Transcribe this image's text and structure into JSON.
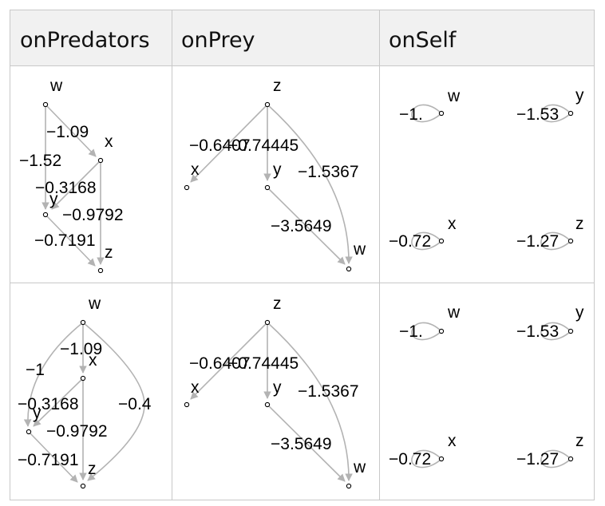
{
  "headers": [
    "onPredators",
    "onPrey",
    "onSelf"
  ],
  "rows": [
    {
      "onPredators": {
        "nodes": [
          "w",
          "x",
          "y",
          "z"
        ],
        "edge_labels": [
          "−1.09",
          "−1.52",
          "−0.3168",
          "−0.9792",
          "−0.7191"
        ]
      },
      "onPrey": {
        "nodes": [
          "z",
          "x",
          "y",
          "w"
        ],
        "edge_labels": [
          "−0.6407",
          "−0.74445",
          "−1.5367",
          "−3.5649"
        ]
      },
      "onSelf": {
        "nodes": [
          "w",
          "y",
          "x",
          "z"
        ],
        "loop_labels": [
          "−1.",
          "−1.53",
          "−0.72",
          "−1.27"
        ]
      }
    },
    {
      "onPredators": {
        "nodes": [
          "w",
          "x",
          "y",
          "z"
        ],
        "edge_labels": [
          "−1.09",
          "−1",
          "−0.3168",
          "−0.4",
          "−0.9792",
          "−0.7191"
        ]
      },
      "onPrey": {
        "nodes": [
          "z",
          "x",
          "y",
          "w"
        ],
        "edge_labels": [
          "−0.6407",
          "−0.74445",
          "−1.5367",
          "−3.5649"
        ]
      },
      "onSelf": {
        "nodes": [
          "w",
          "y",
          "x",
          "z"
        ],
        "loop_labels": [
          "−1.",
          "−1.53",
          "−0.72",
          "−1.27"
        ]
      }
    }
  ]
}
